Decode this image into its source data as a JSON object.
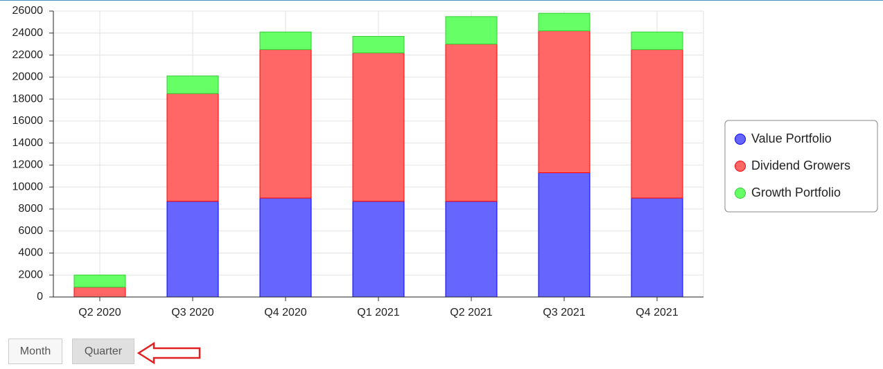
{
  "chart_data": {
    "type": "bar",
    "stacked": true,
    "categories": [
      "Q2 2020",
      "Q3 2020",
      "Q4 2020",
      "Q1 2021",
      "Q2 2021",
      "Q3 2021",
      "Q4 2021"
    ],
    "series": [
      {
        "name": "Value Portfolio",
        "color": "#6666ff",
        "values": [
          0,
          8700,
          9000,
          8700,
          8700,
          11300,
          9000
        ]
      },
      {
        "name": "Dividend Growers",
        "color": "#ff6666",
        "values": [
          900,
          9800,
          13500,
          13500,
          14300,
          12900,
          13500
        ]
      },
      {
        "name": "Growth Portfolio",
        "color": "#66ff66",
        "values": [
          1100,
          1600,
          1600,
          1500,
          2500,
          1600,
          1600
        ]
      }
    ],
    "ylim": [
      0,
      26000
    ],
    "yticks": [
      0,
      2000,
      4000,
      6000,
      8000,
      10000,
      12000,
      14000,
      16000,
      18000,
      20000,
      22000,
      24000,
      26000
    ],
    "grid": true,
    "legend": "right"
  },
  "buttons": [
    {
      "label": "Month",
      "active": false
    },
    {
      "label": "Quarter",
      "active": true
    }
  ]
}
